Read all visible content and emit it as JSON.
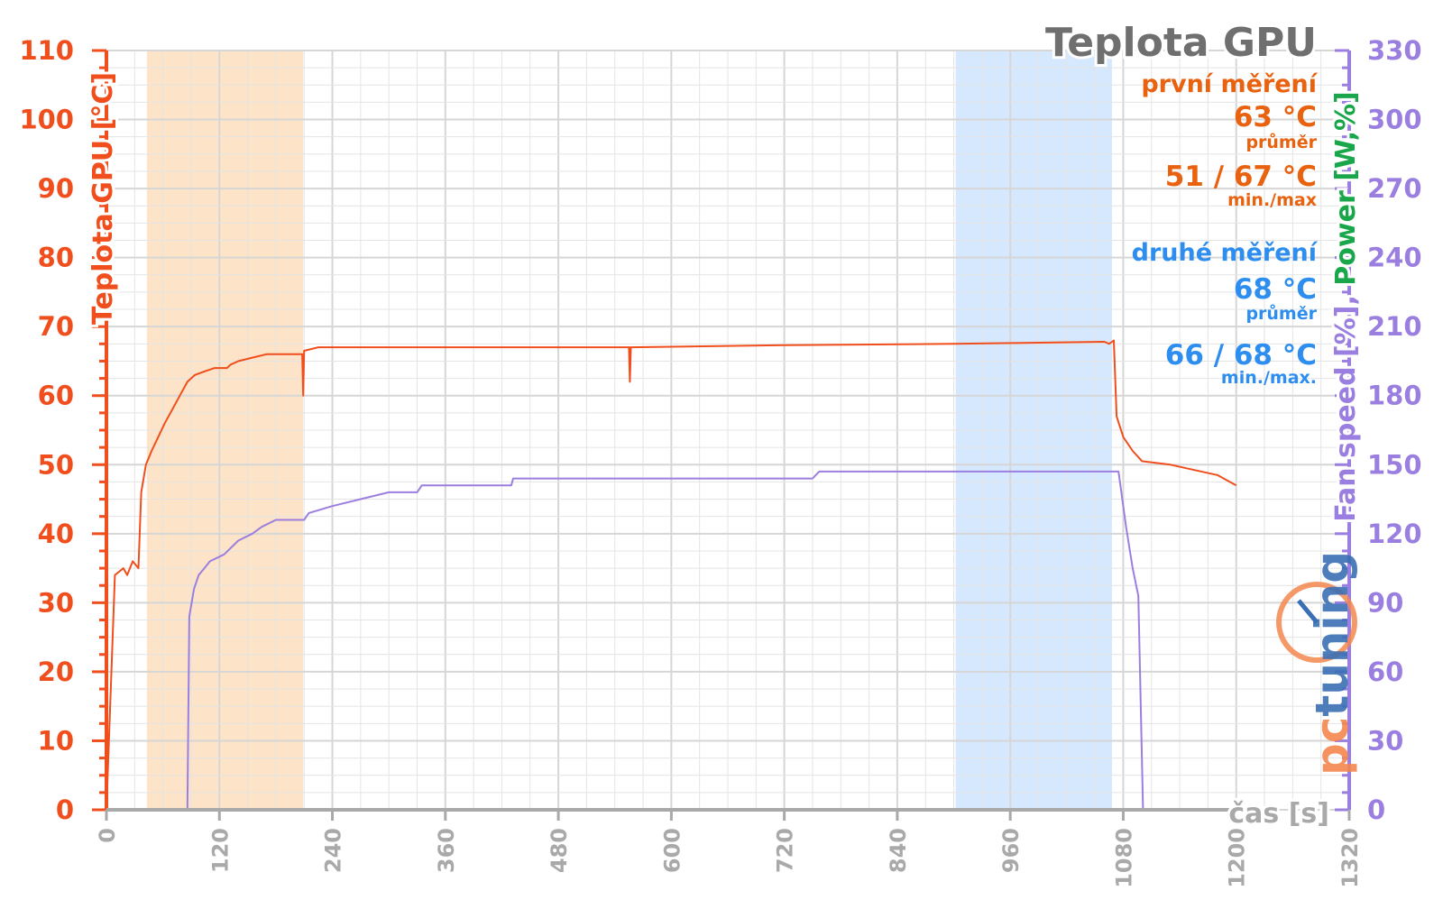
{
  "chart_data": {
    "type": "line",
    "title": "Teplota GPU",
    "xlabel": "čas [s]",
    "ylabel_left": "Teplota GPU [°C]",
    "ylabel_right": [
      {
        "text": "Fan speed [%]",
        "color": "#9b7fe0"
      },
      {
        "text": ", ",
        "color": "#9b7fe0"
      },
      {
        "text": "Power [W,%]",
        "color": "#1aa64a"
      }
    ],
    "xlim": [
      0,
      1320
    ],
    "ylim_left": [
      0,
      110
    ],
    "ylim_right": [
      0,
      330
    ],
    "x_ticks": [
      "0",
      "120",
      "240",
      "360",
      "480",
      "600",
      "720",
      "840",
      "960",
      "1080",
      "1200",
      "1320"
    ],
    "y_left_ticks": [
      "0",
      "10",
      "20",
      "30",
      "40",
      "50",
      "60",
      "70",
      "80",
      "90",
      "100",
      "110"
    ],
    "y_right_ticks": [
      "0",
      "30",
      "60",
      "90",
      "120",
      "150",
      "180",
      "210",
      "240",
      "270",
      "300",
      "330"
    ],
    "grid": true,
    "shaded_regions": [
      {
        "x_start": 43,
        "x_end": 209,
        "color": "#fde3c8"
      },
      {
        "x_start": 902,
        "x_end": 1068,
        "color": "#d6e8fd"
      }
    ],
    "series": [
      {
        "color": "#f04e1c",
        "axis": "left",
        "points": [
          [
            0,
            0
          ],
          [
            9,
            34
          ],
          [
            18,
            35
          ],
          [
            22,
            34
          ],
          [
            28,
            36
          ],
          [
            34,
            35
          ],
          [
            37,
            46
          ],
          [
            42,
            50
          ],
          [
            48,
            52
          ],
          [
            55,
            54
          ],
          [
            62,
            56
          ],
          [
            70,
            58
          ],
          [
            78,
            60
          ],
          [
            86,
            62
          ],
          [
            94,
            63
          ],
          [
            104,
            63.5
          ],
          [
            115,
            64
          ],
          [
            128,
            64
          ],
          [
            132,
            64.5
          ],
          [
            140,
            65
          ],
          [
            155,
            65.5
          ],
          [
            170,
            66
          ],
          [
            200,
            66
          ],
          [
            208,
            66
          ],
          [
            209,
            60
          ],
          [
            210,
            66.5
          ],
          [
            225,
            67
          ],
          [
            560,
            67
          ],
          [
            555,
            67
          ],
          [
            556,
            62
          ],
          [
            557,
            67
          ],
          [
            720,
            67.3
          ],
          [
            900,
            67.5
          ],
          [
            1060,
            67.8
          ],
          [
            1065,
            67.5
          ],
          [
            1070,
            68
          ],
          [
            1073,
            57
          ],
          [
            1080,
            54
          ],
          [
            1090,
            52
          ],
          [
            1100,
            50.5
          ],
          [
            1130,
            50
          ],
          [
            1180,
            48.5
          ],
          [
            1200,
            47
          ]
        ]
      },
      {
        "color": "#9b7fe0",
        "axis": "right",
        "points": [
          [
            0,
            0
          ],
          [
            86,
            0
          ],
          [
            88,
            84
          ],
          [
            93,
            96
          ],
          [
            98,
            102
          ],
          [
            104,
            105
          ],
          [
            110,
            108
          ],
          [
            125,
            111
          ],
          [
            140,
            117
          ],
          [
            155,
            120
          ],
          [
            165,
            123
          ],
          [
            180,
            126
          ],
          [
            210,
            126
          ],
          [
            215,
            129
          ],
          [
            240,
            132
          ],
          [
            270,
            135
          ],
          [
            300,
            138
          ],
          [
            330,
            138
          ],
          [
            335,
            141
          ],
          [
            400,
            141
          ],
          [
            430,
            141
          ],
          [
            432,
            144
          ],
          [
            750,
            144
          ],
          [
            757,
            147
          ],
          [
            1075,
            147
          ],
          [
            1083,
            123
          ],
          [
            1090,
            105
          ],
          [
            1096,
            93
          ],
          [
            1101,
            0
          ],
          [
            1200,
            0
          ]
        ]
      }
    ],
    "annotations": {
      "first": {
        "heading": "první měření",
        "avg": "63 °C",
        "avg_label": "průměr",
        "minmax": "51 / 67 °C",
        "minmax_label": "min./max",
        "color": "#e8620f"
      },
      "second": {
        "heading": "druhé měření",
        "avg": "68 °C",
        "avg_label": "průměr",
        "minmax": "66 / 68 °C",
        "minmax_label": "min./max.",
        "color": "#2d8ef0"
      }
    },
    "colors": {
      "left_axis": "#f04e1c",
      "right_axis": "#9b7fe0",
      "x_axis": "#a9a9a9",
      "title": "#6f6f6f",
      "grid": "#e4e4e4"
    },
    "logo": {
      "text": "pctuning"
    }
  }
}
